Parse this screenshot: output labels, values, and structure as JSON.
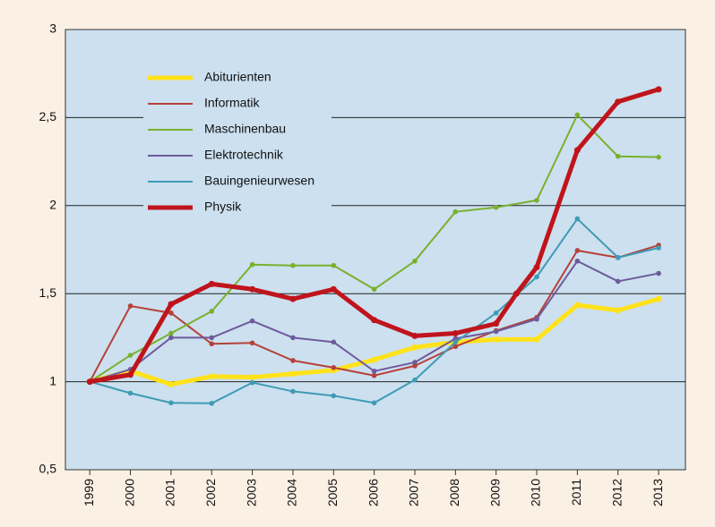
{
  "chart_data": {
    "type": "line",
    "x": [
      1999,
      2000,
      2001,
      2002,
      2003,
      2004,
      2005,
      2006,
      2007,
      2008,
      2009,
      2010,
      2011,
      2012,
      2013
    ],
    "xlim": [
      1998.4,
      2013.66
    ],
    "xticks": [
      1999,
      2000,
      2001,
      2002,
      2003,
      2004,
      2005,
      2006,
      2007,
      2008,
      2009,
      2010,
      2011,
      2012,
      2013
    ],
    "ylim": [
      0.5,
      3
    ],
    "yticks": [
      {
        "value": 0.5,
        "label": "0,5"
      },
      1,
      {
        "value": 1.5,
        "label": "1,5"
      },
      2,
      {
        "value": 2.5,
        "label": "2,5"
      },
      3
    ],
    "grid": true,
    "legend": "upper left",
    "series": [
      {
        "name": "Abiturienten",
        "color": "#ffe21a",
        "values": [
          1,
          1.06,
          0.985,
          1.03,
          1.025,
          1.045,
          1.065,
          1.125,
          1.195,
          1.225,
          1.24,
          1.24,
          1.435,
          1.405,
          1.47
        ]
      },
      {
        "name": "Informatik",
        "color": "#b5413a",
        "values": [
          1,
          1.43,
          1.39,
          1.215,
          1.22,
          1.12,
          1.08,
          1.035,
          1.09,
          1.2,
          1.29,
          1.365,
          1.745,
          1.705,
          1.775
        ]
      },
      {
        "name": "Maschinenbau",
        "color": "#79b12e",
        "values": [
          1,
          1.15,
          1.275,
          1.4,
          1.665,
          1.66,
          1.66,
          1.525,
          1.685,
          1.965,
          1.99,
          2.03,
          2.515,
          2.28,
          2.275
        ]
      },
      {
        "name": "Elektrotechnik",
        "color": "#6e5a9c",
        "values": [
          1,
          1.07,
          1.25,
          1.25,
          1.345,
          1.25,
          1.225,
          1.06,
          1.11,
          1.245,
          1.285,
          1.355,
          1.685,
          1.57,
          1.615
        ]
      },
      {
        "name": "Bauingenieurwesen",
        "color": "#3f9bb5",
        "values": [
          1,
          0.935,
          0.88,
          0.877,
          0.995,
          0.945,
          0.92,
          0.88,
          1.01,
          1.225,
          1.39,
          1.595,
          1.925,
          1.705,
          1.76
        ]
      },
      {
        "name": "Physik",
        "color": "#c0141c",
        "x": [
          1999,
          2000,
          2001,
          2002,
          2003,
          2004,
          2005,
          2006,
          2007,
          2008,
          2009,
          2009.5,
          2010,
          2011,
          2012,
          2013
        ],
        "values": [
          1,
          1.04,
          1.44,
          1.555,
          1.525,
          1.47,
          1.525,
          1.35,
          1.26,
          1.275,
          1.33,
          1.5,
          1.65,
          2.315,
          2.59,
          2.66
        ]
      }
    ]
  }
}
